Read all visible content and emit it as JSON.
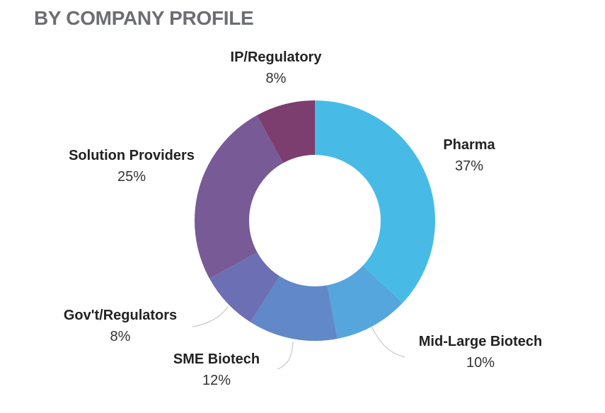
{
  "page_title": "BY COMPANY PROFILE",
  "chart_data": {
    "type": "pie",
    "donut": true,
    "title": "BY COMPANY PROFILE",
    "slices": [
      {
        "label": "Pharma",
        "value": 37,
        "value_label": "37%",
        "color": "#47bbe6"
      },
      {
        "label": "Mid-Large Biotech",
        "value": 10,
        "value_label": "10%",
        "color": "#55a6dc"
      },
      {
        "label": "SME Biotech",
        "value": 12,
        "value_label": "12%",
        "color": "#6188c9"
      },
      {
        "label": "Gov't/Regulators",
        "value": 8,
        "value_label": "8%",
        "color": "#6c6fb3"
      },
      {
        "label": "Solution Providers",
        "value": 25,
        "value_label": "25%",
        "color": "#785a96"
      },
      {
        "label": "IP/Regulatory",
        "value": 8,
        "value_label": "8%",
        "color": "#7b3e6e"
      }
    ]
  }
}
